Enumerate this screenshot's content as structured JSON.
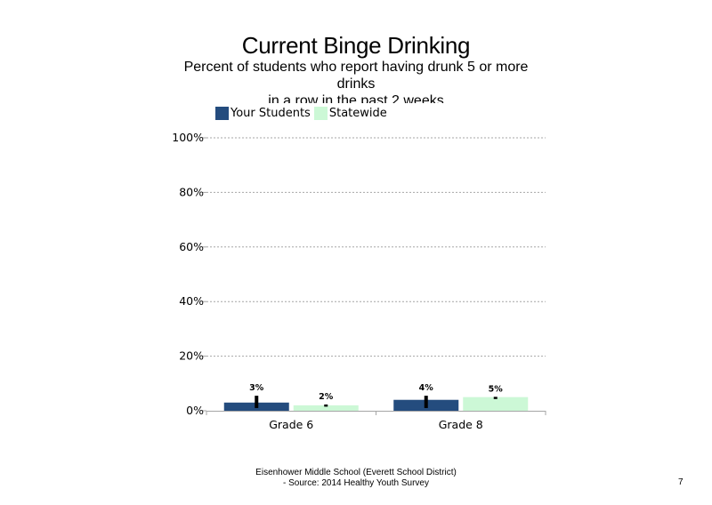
{
  "slide": {
    "title": "Current Binge Drinking",
    "subtitle": "Percent of students  who report having drunk 5 or more drinks\nin a row in the past 2 weeks",
    "footer_line1": "Eisenhower Middle School (Everett School District)",
    "footer_line2": "- Source: 2014 Healthy  Youth Survey",
    "page_number": "7"
  },
  "chart_data": {
    "type": "bar",
    "title": "Current Binge Drinking",
    "categories": [
      "Grade 6",
      "Grade 8"
    ],
    "series": [
      {
        "name": "Your Students",
        "values": [
          3,
          4
        ],
        "labels": [
          "3%",
          "4%"
        ],
        "error_low": [
          1,
          1
        ],
        "error_high": [
          5.5,
          5.5
        ],
        "color": "#244c7e"
      },
      {
        "name": "Statewide",
        "values": [
          2,
          5
        ],
        "labels": [
          "2%",
          "5%"
        ],
        "error_low": [
          1.5,
          4.3
        ],
        "error_high": [
          2.3,
          5.1
        ],
        "color": "#ccf8d6"
      }
    ],
    "yticks": [
      "0%",
      "20%",
      "40%",
      "60%",
      "80%",
      "100%"
    ],
    "ylim": [
      0,
      100
    ],
    "grid": true,
    "legend_position": "top-left"
  }
}
